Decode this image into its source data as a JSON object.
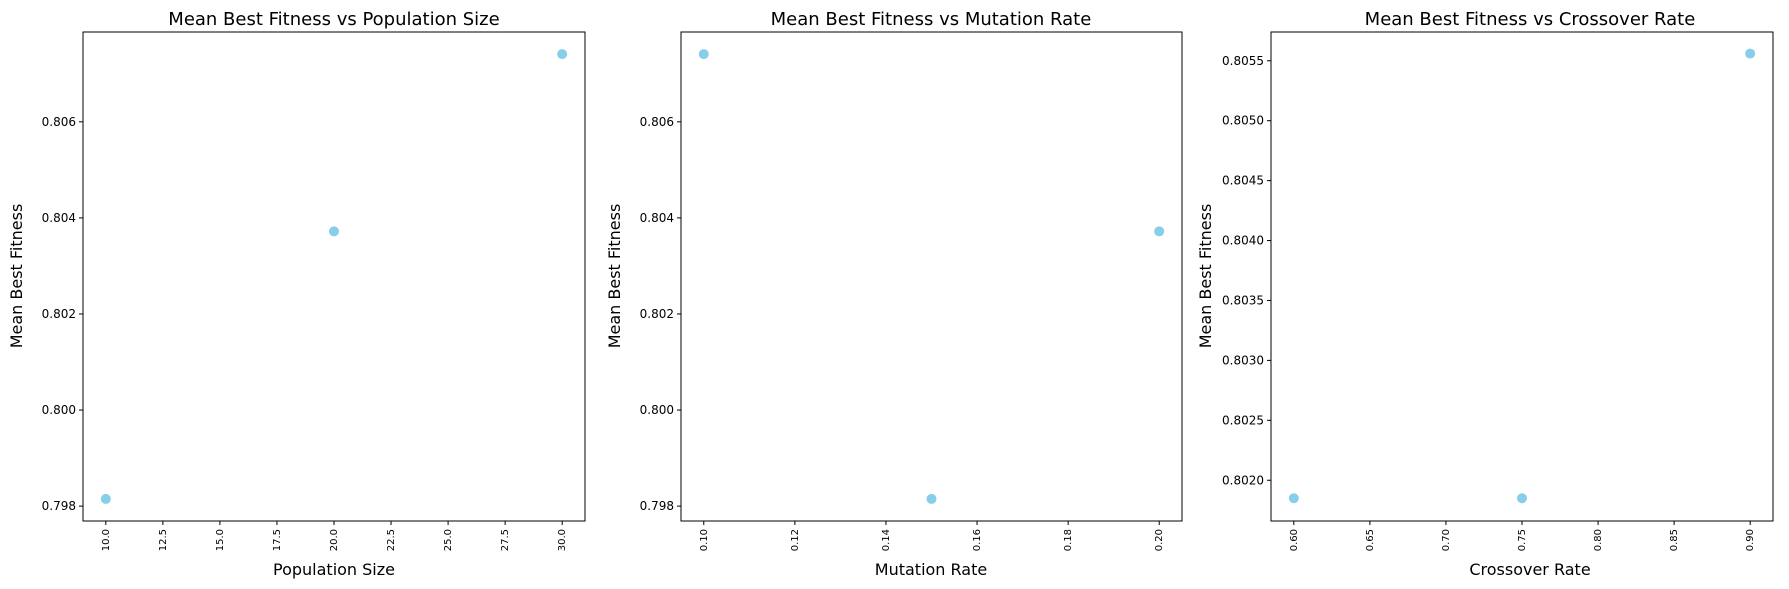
{
  "chart_data": [
    {
      "type": "scatter",
      "title": "Mean Best Fitness vs Population Size",
      "xlabel": "Population Size",
      "ylabel": "Mean Best Fitness",
      "x": [
        10,
        20,
        30
      ],
      "y": [
        0.79815,
        0.80372,
        0.80741
      ],
      "xlim": [
        9.0,
        31.0
      ],
      "ylim": [
        0.79769,
        0.80787
      ],
      "xticks": [
        10.0,
        12.5,
        15.0,
        17.5,
        20.0,
        22.5,
        25.0,
        27.5,
        30.0
      ],
      "xtick_labels": [
        "10.0",
        "12.5",
        "15.0",
        "17.5",
        "20.0",
        "22.5",
        "25.0",
        "27.5",
        "30.0"
      ],
      "yticks": [
        0.798,
        0.8,
        0.802,
        0.804,
        0.806
      ],
      "ytick_labels": [
        "0.798",
        "0.800",
        "0.802",
        "0.804",
        "0.806"
      ],
      "color": "#87ceeb",
      "grid": false,
      "legend": "none"
    },
    {
      "type": "scatter",
      "title": "Mean Best Fitness vs Mutation Rate",
      "xlabel": "Mutation Rate",
      "ylabel": "Mean Best Fitness",
      "x": [
        0.1,
        0.15,
        0.2
      ],
      "y": [
        0.80741,
        0.79815,
        0.80372
      ],
      "xlim": [
        0.095,
        0.205
      ],
      "ylim": [
        0.79769,
        0.80787
      ],
      "xticks": [
        0.1,
        0.12,
        0.14,
        0.16,
        0.18,
        0.2
      ],
      "xtick_labels": [
        "0.10",
        "0.12",
        "0.14",
        "0.16",
        "0.18",
        "0.20"
      ],
      "yticks": [
        0.798,
        0.8,
        0.802,
        0.804,
        0.806
      ],
      "ytick_labels": [
        "0.798",
        "0.800",
        "0.802",
        "0.804",
        "0.806"
      ],
      "color": "#87ceeb",
      "grid": false,
      "legend": "none"
    },
    {
      "type": "scatter",
      "title": "Mean Best Fitness vs Crossover Rate",
      "xlabel": "Crossover Rate",
      "ylabel": "Mean Best Fitness",
      "x": [
        0.6,
        0.75,
        0.9
      ],
      "y": [
        0.80185,
        0.80185,
        0.80556
      ],
      "xlim": [
        0.585,
        0.915
      ],
      "ylim": [
        0.80166,
        0.80574
      ],
      "xticks": [
        0.6,
        0.65,
        0.7,
        0.75,
        0.8,
        0.85,
        0.9
      ],
      "xtick_labels": [
        "0.60",
        "0.65",
        "0.70",
        "0.75",
        "0.80",
        "0.85",
        "0.90"
      ],
      "yticks": [
        0.802,
        0.8025,
        0.803,
        0.8035,
        0.804,
        0.8045,
        0.805,
        0.8055
      ],
      "ytick_labels": [
        "0.8020",
        "0.8025",
        "0.8030",
        "0.8035",
        "0.8040",
        "0.8045",
        "0.8050",
        "0.8055"
      ],
      "color": "#87ceeb",
      "grid": false,
      "legend": "none"
    }
  ]
}
